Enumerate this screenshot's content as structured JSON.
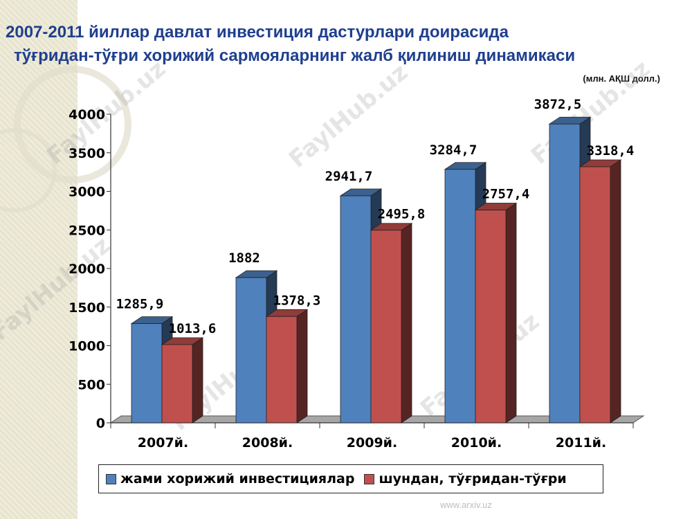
{
  "title": {
    "line1": "2007-2011 йиллар давлат инвестиция дастурлари доирасида",
    "line2": "тўғридан-тўғри хорижий сармояларнинг жалб қилиниш динамикаси"
  },
  "unit": "(млн. АҚШ долл.)",
  "watermark": "FaylHub.uz",
  "site": "www.arxiv.uz",
  "chart_data": {
    "type": "bar",
    "categories": [
      "2007й.",
      "2008й.",
      "2009й.",
      "2010й.",
      "2011й."
    ],
    "series": [
      {
        "name": "жами хорижий инвестициялар",
        "color": "#4f81bd",
        "values": [
          1285.9,
          1882,
          2941.7,
          3284.7,
          3872.5
        ],
        "labels": [
          "1285,9",
          "1882",
          "2941,7",
          "3284,7",
          "3872,5"
        ]
      },
      {
        "name": "шундан, тўғридан-тўғри",
        "color": "#c0504d",
        "values": [
          1013.6,
          1378.3,
          2495.8,
          2757.4,
          3318.4
        ],
        "labels": [
          "1013,6",
          "1378,3",
          "2495,8",
          "2757,4",
          "3318,4"
        ]
      }
    ],
    "ylim": [
      0,
      4000
    ],
    "yticks": [
      "0",
      "500",
      "1000",
      "1500",
      "2000",
      "2500",
      "3000",
      "3500",
      "4000"
    ],
    "legend_position": "bottom",
    "grid": false,
    "style": "3d"
  }
}
